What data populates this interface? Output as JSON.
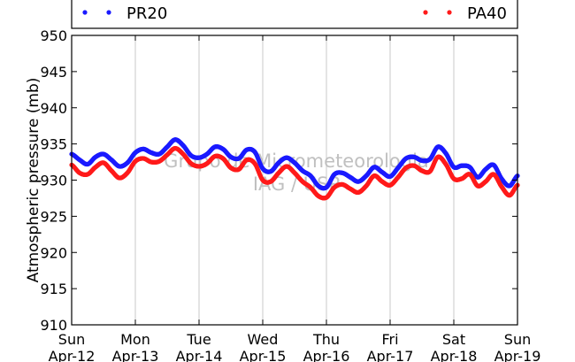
{
  "colors": {
    "pr20": "#1a1aff",
    "pa40": "#ff1a1a",
    "grid": "#c8c8c8",
    "watermark": "#c0c0c0"
  },
  "watermark": {
    "line1": "Grupo de Micrometeorologia",
    "line2": "IAG / USP"
  },
  "chart_data": {
    "type": "scatter",
    "title": "",
    "ylabel": "Atmospheric pressure (mb)",
    "xlabel": "",
    "ylim": [
      910,
      950
    ],
    "yticks": [
      910,
      915,
      920,
      925,
      930,
      935,
      940,
      945,
      950
    ],
    "xlim": [
      "2015-04-12",
      "2015-04-19"
    ],
    "xticks": [
      {
        "day": "Sun",
        "date": "Apr-12"
      },
      {
        "day": "Mon",
        "date": "Apr-13"
      },
      {
        "day": "Tue",
        "date": "Apr-14"
      },
      {
        "day": "Wed",
        "date": "Apr-15"
      },
      {
        "day": "Thu",
        "date": "Apr-16"
      },
      {
        "day": "Fri",
        "date": "Apr-17"
      },
      {
        "day": "Sat",
        "date": "Apr-18"
      },
      {
        "day": "Sun",
        "date": "Apr-19"
      }
    ],
    "grid": true,
    "legend_position": "top",
    "series": [
      {
        "name": "PR20",
        "color": "#1a1aff",
        "points": [
          [
            "2015-04-12 00:00",
            933.6
          ],
          [
            "2015-04-12 03:00",
            932.8
          ],
          [
            "2015-04-12 06:00",
            932.2
          ],
          [
            "2015-04-12 09:00",
            933.2
          ],
          [
            "2015-04-12 12:00",
            933.6
          ],
          [
            "2015-04-12 15:00",
            932.8
          ],
          [
            "2015-04-12 18:00",
            931.9
          ],
          [
            "2015-04-12 21:00",
            932.4
          ],
          [
            "2015-04-13 00:00",
            933.8
          ],
          [
            "2015-04-13 03:00",
            934.3
          ],
          [
            "2015-04-13 06:00",
            933.8
          ],
          [
            "2015-04-13 09:00",
            933.6
          ],
          [
            "2015-04-13 12:00",
            934.6
          ],
          [
            "2015-04-13 15:00",
            935.6
          ],
          [
            "2015-04-13 18:00",
            934.8
          ],
          [
            "2015-04-13 21:00",
            933.4
          ],
          [
            "2015-04-14 00:00",
            933.1
          ],
          [
            "2015-04-14 03:00",
            933.6
          ],
          [
            "2015-04-14 06:00",
            934.6
          ],
          [
            "2015-04-14 09:00",
            934.3
          ],
          [
            "2015-04-14 12:00",
            933.2
          ],
          [
            "2015-04-14 15:00",
            933.0
          ],
          [
            "2015-04-14 18:00",
            934.2
          ],
          [
            "2015-04-14 21:00",
            933.9
          ],
          [
            "2015-04-15 00:00",
            931.6
          ],
          [
            "2015-04-15 03:00",
            931.2
          ],
          [
            "2015-04-15 06:00",
            932.4
          ],
          [
            "2015-04-15 09:00",
            933.1
          ],
          [
            "2015-04-15 12:00",
            932.4
          ],
          [
            "2015-04-15 15:00",
            931.3
          ],
          [
            "2015-04-15 18:00",
            930.6
          ],
          [
            "2015-04-15 21:00",
            929.2
          ],
          [
            "2015-04-16 00:00",
            929.0
          ],
          [
            "2015-04-16 03:00",
            930.8
          ],
          [
            "2015-04-16 06:00",
            931.0
          ],
          [
            "2015-04-16 09:00",
            930.4
          ],
          [
            "2015-04-16 12:00",
            929.8
          ],
          [
            "2015-04-16 15:00",
            930.6
          ],
          [
            "2015-04-16 18:00",
            931.8
          ],
          [
            "2015-04-16 21:00",
            931.1
          ],
          [
            "2015-04-17 00:00",
            930.5
          ],
          [
            "2015-04-17 03:00",
            931.7
          ],
          [
            "2015-04-17 06:00",
            933.0
          ],
          [
            "2015-04-17 09:00",
            933.2
          ],
          [
            "2015-04-17 12:00",
            932.7
          ],
          [
            "2015-04-17 15:00",
            932.9
          ],
          [
            "2015-04-17 18:00",
            934.6
          ],
          [
            "2015-04-17 21:00",
            933.7
          ],
          [
            "2015-04-18 00:00",
            931.8
          ],
          [
            "2015-04-18 03:00",
            932.0
          ],
          [
            "2015-04-18 06:00",
            931.8
          ],
          [
            "2015-04-18 09:00",
            930.4
          ],
          [
            "2015-04-18 12:00",
            931.5
          ],
          [
            "2015-04-18 15:00",
            932.1
          ],
          [
            "2015-04-18 18:00",
            930.2
          ],
          [
            "2015-04-18 21:00",
            929.2
          ],
          [
            "2015-04-19 00:00",
            930.6
          ]
        ]
      },
      {
        "name": "PA40",
        "color": "#ff1a1a",
        "points": [
          [
            "2015-04-12 00:00",
            932.1
          ],
          [
            "2015-04-12 03:00",
            931.0
          ],
          [
            "2015-04-12 06:00",
            930.8
          ],
          [
            "2015-04-12 09:00",
            931.8
          ],
          [
            "2015-04-12 12:00",
            932.4
          ],
          [
            "2015-04-12 15:00",
            931.3
          ],
          [
            "2015-04-12 18:00",
            930.3
          ],
          [
            "2015-04-12 21:00",
            931.0
          ],
          [
            "2015-04-13 00:00",
            932.6
          ],
          [
            "2015-04-13 03:00",
            933.0
          ],
          [
            "2015-04-13 06:00",
            932.5
          ],
          [
            "2015-04-13 09:00",
            932.6
          ],
          [
            "2015-04-13 12:00",
            933.5
          ],
          [
            "2015-04-13 15:00",
            934.4
          ],
          [
            "2015-04-13 18:00",
            933.6
          ],
          [
            "2015-04-13 21:00",
            932.3
          ],
          [
            "2015-04-14 00:00",
            931.9
          ],
          [
            "2015-04-14 03:00",
            932.3
          ],
          [
            "2015-04-14 06:00",
            933.3
          ],
          [
            "2015-04-14 09:00",
            933.0
          ],
          [
            "2015-04-14 12:00",
            931.7
          ],
          [
            "2015-04-14 15:00",
            931.5
          ],
          [
            "2015-04-14 18:00",
            932.8
          ],
          [
            "2015-04-14 21:00",
            932.3
          ],
          [
            "2015-04-15 00:00",
            930.0
          ],
          [
            "2015-04-15 03:00",
            929.8
          ],
          [
            "2015-04-15 06:00",
            931.0
          ],
          [
            "2015-04-15 09:00",
            931.9
          ],
          [
            "2015-04-15 12:00",
            931.0
          ],
          [
            "2015-04-15 15:00",
            929.8
          ],
          [
            "2015-04-15 18:00",
            929.0
          ],
          [
            "2015-04-15 21:00",
            927.8
          ],
          [
            "2015-04-16 00:00",
            927.6
          ],
          [
            "2015-04-16 03:00",
            929.0
          ],
          [
            "2015-04-16 06:00",
            929.4
          ],
          [
            "2015-04-16 09:00",
            928.8
          ],
          [
            "2015-04-16 12:00",
            928.3
          ],
          [
            "2015-04-16 15:00",
            929.2
          ],
          [
            "2015-04-16 18:00",
            930.6
          ],
          [
            "2015-04-16 21:00",
            929.8
          ],
          [
            "2015-04-17 00:00",
            929.3
          ],
          [
            "2015-04-17 03:00",
            930.4
          ],
          [
            "2015-04-17 06:00",
            931.7
          ],
          [
            "2015-04-17 09:00",
            932.0
          ],
          [
            "2015-04-17 12:00",
            931.3
          ],
          [
            "2015-04-17 15:00",
            931.2
          ],
          [
            "2015-04-17 18:00",
            933.2
          ],
          [
            "2015-04-17 21:00",
            932.2
          ],
          [
            "2015-04-18 00:00",
            930.2
          ],
          [
            "2015-04-18 03:00",
            930.2
          ],
          [
            "2015-04-18 06:00",
            930.8
          ],
          [
            "2015-04-18 09:00",
            929.2
          ],
          [
            "2015-04-18 12:00",
            929.8
          ],
          [
            "2015-04-18 15:00",
            930.8
          ],
          [
            "2015-04-18 18:00",
            929.1
          ],
          [
            "2015-04-18 21:00",
            927.9
          ],
          [
            "2015-04-19 00:00",
            929.3
          ]
        ]
      }
    ]
  }
}
